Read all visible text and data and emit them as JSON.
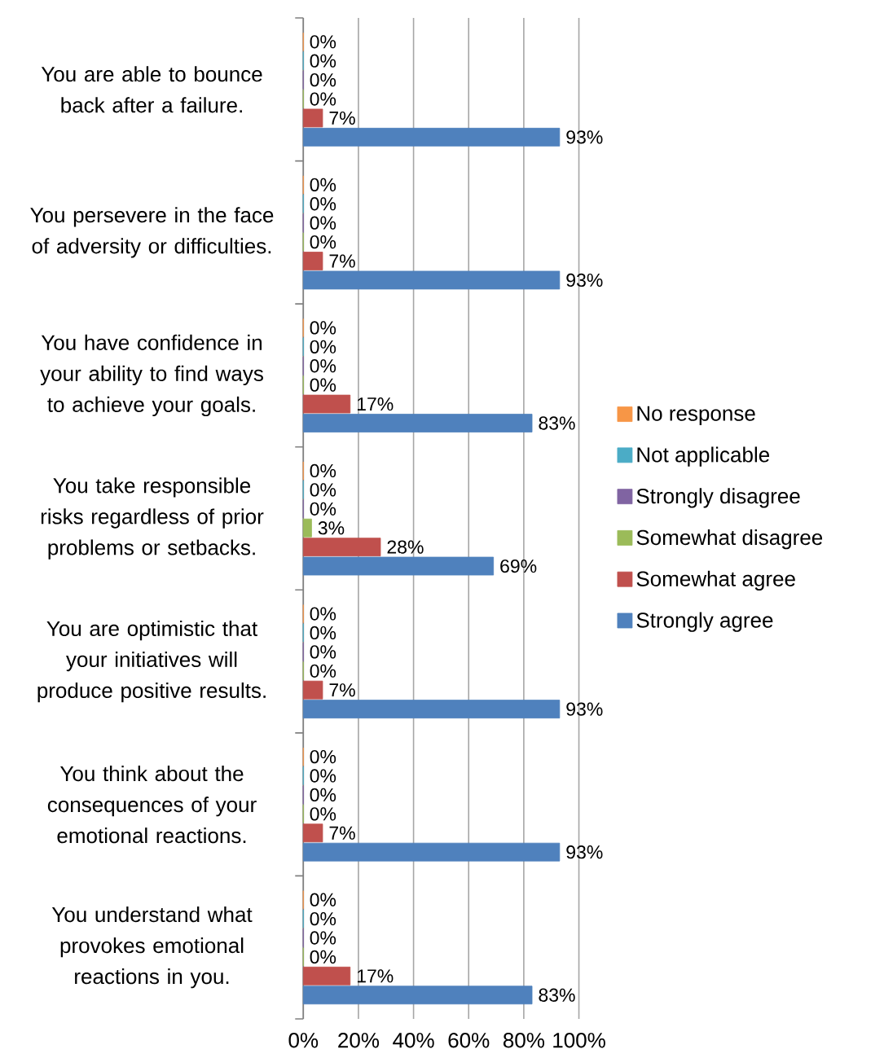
{
  "chart_data": {
    "type": "bar",
    "orientation": "horizontal",
    "categories": [
      "You are able to bounce back after a failure.",
      "You persevere in the face of adversity or difficulties.",
      "You have confidence in your ability to find ways to achieve your goals.",
      "You take responsible risks regardless of prior problems or setbacks.",
      "You are optimistic that your initiatives will produce positive results.",
      "You think about the consequences of your emotional reactions.",
      "You understand what provokes emotional reactions in you."
    ],
    "series": [
      {
        "name": "No response",
        "color": "#f79646",
        "values": [
          0,
          0,
          0,
          0,
          0,
          0,
          0
        ],
        "value_labels": [
          "0%",
          "0%",
          "0%",
          "0%",
          "0%",
          "0%",
          "0%"
        ]
      },
      {
        "name": "Not applicable",
        "color": "#4bacc6",
        "values": [
          0,
          0,
          0,
          0,
          0,
          0,
          0
        ],
        "value_labels": [
          "0%",
          "0%",
          "0%",
          "0%",
          "0%",
          "0%",
          "0%"
        ]
      },
      {
        "name": "Strongly disagree",
        "color": "#8064a2",
        "values": [
          0,
          0,
          0,
          0,
          0,
          0,
          0
        ],
        "value_labels": [
          "0%",
          "0%",
          "0%",
          "0%",
          "0%",
          "0%",
          "0%"
        ]
      },
      {
        "name": "Somewhat disagree",
        "color": "#9bbb59",
        "values": [
          0,
          0,
          0,
          3,
          0,
          0,
          0
        ],
        "value_labels": [
          "0%",
          "0%",
          "0%",
          "3%",
          "0%",
          "0%",
          "0%"
        ]
      },
      {
        "name": "Somewhat agree",
        "color": "#c0504d",
        "values": [
          7,
          7,
          17,
          28,
          7,
          7,
          17
        ],
        "value_labels": [
          "7%",
          "7%",
          "17%",
          "28%",
          "7%",
          "7%",
          "17%"
        ]
      },
      {
        "name": "Strongly agree",
        "color": "#4f81bd",
        "values": [
          93,
          93,
          83,
          69,
          93,
          93,
          83
        ],
        "value_labels": [
          "93%",
          "93%",
          "83%",
          "69%",
          "93%",
          "93%",
          "83%"
        ]
      }
    ],
    "xlim": [
      0,
      100
    ],
    "xticks": [
      {
        "value": 0,
        "label": "0%"
      },
      {
        "value": 20,
        "label": "20%"
      },
      {
        "value": 40,
        "label": "40%"
      },
      {
        "value": 60,
        "label": "60%"
      },
      {
        "value": 80,
        "label": "80%"
      },
      {
        "value": 100,
        "label": "100%"
      }
    ],
    "grid": "x",
    "legend": "right"
  }
}
